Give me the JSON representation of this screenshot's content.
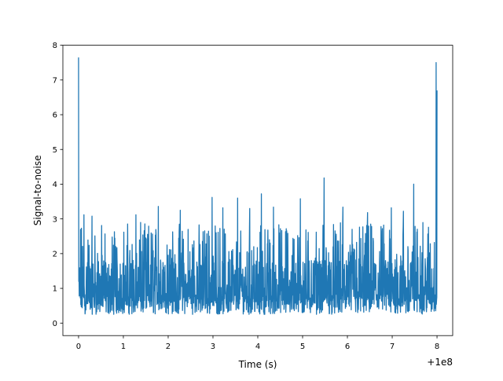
{
  "chart_data": {
    "type": "line",
    "xlabel": "Time (s)",
    "ylabel": "Signal-to-noise",
    "xlim": [
      -0.35,
      8.35
    ],
    "ylim": [
      -0.36,
      8.0
    ],
    "x_offset_text": "+1e8",
    "x_ticks": [
      0,
      1,
      2,
      3,
      4,
      5,
      6,
      7,
      8
    ],
    "x_tick_labels": [
      "0",
      "1",
      "2",
      "3",
      "4",
      "5",
      "6",
      "7",
      "8"
    ],
    "y_ticks": [
      0,
      1,
      2,
      3,
      4,
      5,
      6,
      7,
      8
    ],
    "y_tick_labels": [
      "0",
      "1",
      "2",
      "3",
      "4",
      "5",
      "6",
      "7",
      "8"
    ],
    "grid": false,
    "legend": "none",
    "series": [
      {
        "color": "#1f77b4",
        "x_range": [
          0,
          8
        ],
        "baseline_range": [
          0.1,
          3.2
        ],
        "typical_mean": 1.1,
        "spikes": [
          {
            "x": 0.0,
            "y": 7.65
          },
          {
            "x": 0.12,
            "y": 3.12
          },
          {
            "x": 0.3,
            "y": 3.08
          },
          {
            "x": 1.28,
            "y": 3.12
          },
          {
            "x": 1.78,
            "y": 3.36
          },
          {
            "x": 2.27,
            "y": 3.25
          },
          {
            "x": 2.98,
            "y": 3.62
          },
          {
            "x": 3.22,
            "y": 3.32
          },
          {
            "x": 3.55,
            "y": 3.6
          },
          {
            "x": 3.82,
            "y": 3.3
          },
          {
            "x": 4.08,
            "y": 3.72
          },
          {
            "x": 4.35,
            "y": 3.34
          },
          {
            "x": 4.95,
            "y": 3.58
          },
          {
            "x": 5.48,
            "y": 4.18
          },
          {
            "x": 5.9,
            "y": 3.34
          },
          {
            "x": 6.45,
            "y": 3.18
          },
          {
            "x": 6.98,
            "y": 3.32
          },
          {
            "x": 7.25,
            "y": 3.22
          },
          {
            "x": 7.48,
            "y": 4.0
          },
          {
            "x": 7.98,
            "y": 7.5
          },
          {
            "x": 8.0,
            "y": 6.7
          }
        ]
      }
    ]
  }
}
